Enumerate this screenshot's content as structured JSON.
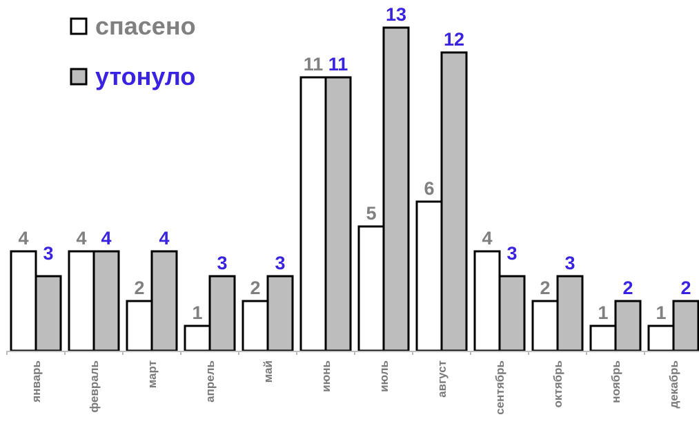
{
  "chart_data": {
    "type": "bar",
    "title": "",
    "xlabel": "",
    "ylabel": "",
    "ylim": [
      0,
      13
    ],
    "grid": false,
    "legend_position": "top-left",
    "categories": [
      "январь",
      "февраль",
      "март",
      "апрель",
      "май",
      "июнь",
      "июль",
      "август",
      "сентябрь",
      "октябрь",
      "ноябрь",
      "декабрь"
    ],
    "series": [
      {
        "name": "спасено",
        "values": [
          4,
          4,
          2,
          1,
          2,
          11,
          5,
          6,
          4,
          2,
          1,
          1
        ],
        "fill_color": "#ffffff",
        "label_color": "#808080"
      },
      {
        "name": "утонуло",
        "values": [
          3,
          4,
          4,
          3,
          3,
          11,
          13,
          12,
          3,
          3,
          2,
          2
        ],
        "fill_color": "#bdbdbd",
        "label_color": "#3a23e0"
      }
    ]
  }
}
